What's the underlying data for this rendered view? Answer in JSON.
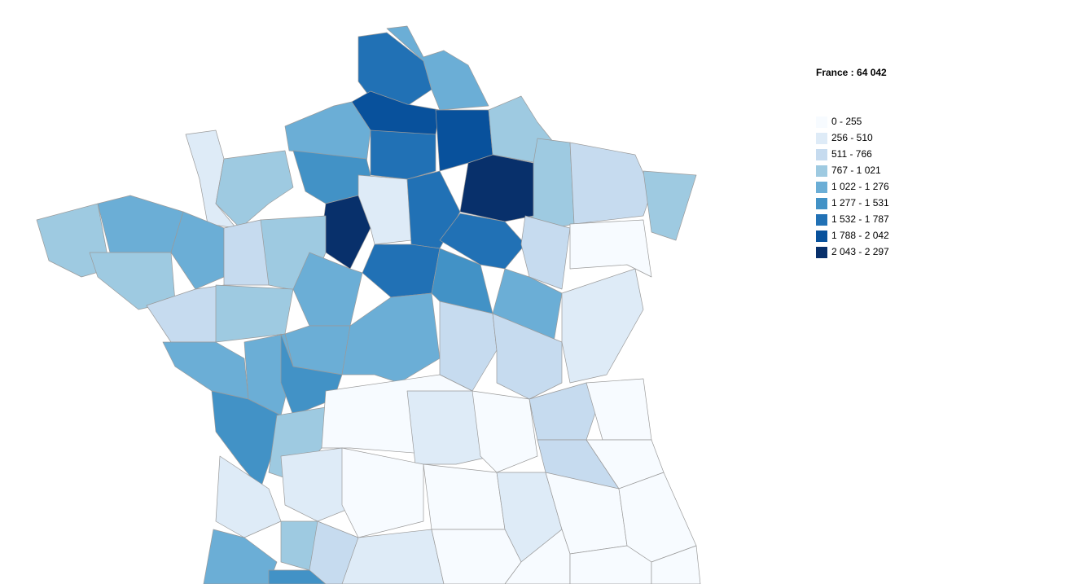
{
  "title": "France : 64 042",
  "legend": [
    {
      "label": "0 - 255",
      "color": "#f7fbff"
    },
    {
      "label": "256 - 510",
      "color": "#deebf7"
    },
    {
      "label": "511 - 766",
      "color": "#c6dbef"
    },
    {
      "label": "767 - 1 021",
      "color": "#9ecae1"
    },
    {
      "label": "1 022 - 1 276",
      "color": "#6baed6"
    },
    {
      "label": "1 277 - 1 531",
      "color": "#4292c6"
    },
    {
      "label": "1 532 - 1 787",
      "color": "#2171b5"
    },
    {
      "label": "1 788 - 2 042",
      "color": "#08519c"
    },
    {
      "label": "2 043 - 2 297",
      "color": "#08306b"
    }
  ]
}
